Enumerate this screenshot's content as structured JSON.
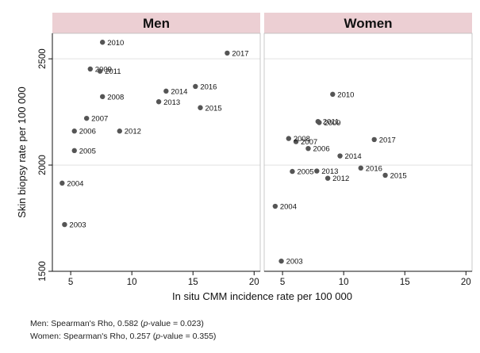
{
  "chart_data": {
    "type": "scatter",
    "panels": [
      {
        "name": "Men",
        "points": [
          {
            "label": "2003",
            "x": 4.5,
            "y": 1720
          },
          {
            "label": "2004",
            "x": 4.3,
            "y": 1915
          },
          {
            "label": "2005",
            "x": 5.3,
            "y": 2068
          },
          {
            "label": "2006",
            "x": 5.3,
            "y": 2160
          },
          {
            "label": "2007",
            "x": 6.3,
            "y": 2220
          },
          {
            "label": "2008",
            "x": 7.6,
            "y": 2322
          },
          {
            "label": "2009",
            "x": 6.6,
            "y": 2452
          },
          {
            "label": "2010",
            "x": 7.6,
            "y": 2578
          },
          {
            "label": "2011",
            "x": 7.4,
            "y": 2442
          },
          {
            "label": "2012",
            "x": 9.0,
            "y": 2160
          },
          {
            "label": "2013",
            "x": 12.2,
            "y": 2298
          },
          {
            "label": "2014",
            "x": 12.8,
            "y": 2348
          },
          {
            "label": "2015",
            "x": 15.6,
            "y": 2270
          },
          {
            "label": "2016",
            "x": 15.2,
            "y": 2370
          },
          {
            "label": "2017",
            "x": 17.8,
            "y": 2527
          }
        ]
      },
      {
        "name": "Women",
        "points": [
          {
            "label": "2003",
            "x": 4.9,
            "y": 1548
          },
          {
            "label": "2004",
            "x": 4.4,
            "y": 1806
          },
          {
            "label": "2005",
            "x": 5.8,
            "y": 1970
          },
          {
            "label": "2006",
            "x": 7.1,
            "y": 2078
          },
          {
            "label": "2007",
            "x": 6.1,
            "y": 2110
          },
          {
            "label": "2008",
            "x": 5.5,
            "y": 2125
          },
          {
            "label": "2009",
            "x": 8.0,
            "y": 2200
          },
          {
            "label": "2010",
            "x": 9.1,
            "y": 2333
          },
          {
            "label": "2011",
            "x": 7.9,
            "y": 2205
          },
          {
            "label": "2012",
            "x": 8.7,
            "y": 1938
          },
          {
            "label": "2013",
            "x": 7.8,
            "y": 1972
          },
          {
            "label": "2014",
            "x": 9.7,
            "y": 2043
          },
          {
            "label": "2015",
            "x": 13.4,
            "y": 1952
          },
          {
            "label": "2016",
            "x": 11.4,
            "y": 1986
          },
          {
            "label": "2017",
            "x": 12.5,
            "y": 2120
          }
        ]
      }
    ],
    "xlabel": "In situ CMM incidence rate per 100 000",
    "ylabel": "Skin biopsy rate per 100 000",
    "xlim": [
      3.5,
      20.5
    ],
    "ylim": [
      1500,
      2620
    ],
    "xticks": [
      5,
      10,
      15,
      20
    ],
    "yticks": [
      1500,
      2000,
      2500
    ],
    "grid": "horizontal",
    "colors": {
      "point": "#555555",
      "header": "#eccfd3",
      "grid": "#e2e2e2"
    }
  },
  "notes": {
    "men": {
      "prefix": "Men: Spearman's Rho, 0.582 (",
      "italic": "p",
      "suffix": "-value = 0.023)"
    },
    "women": {
      "prefix": "Women: Spearman's Rho, 0.257 (",
      "italic": "p",
      "suffix": "-value = 0.355)"
    }
  }
}
